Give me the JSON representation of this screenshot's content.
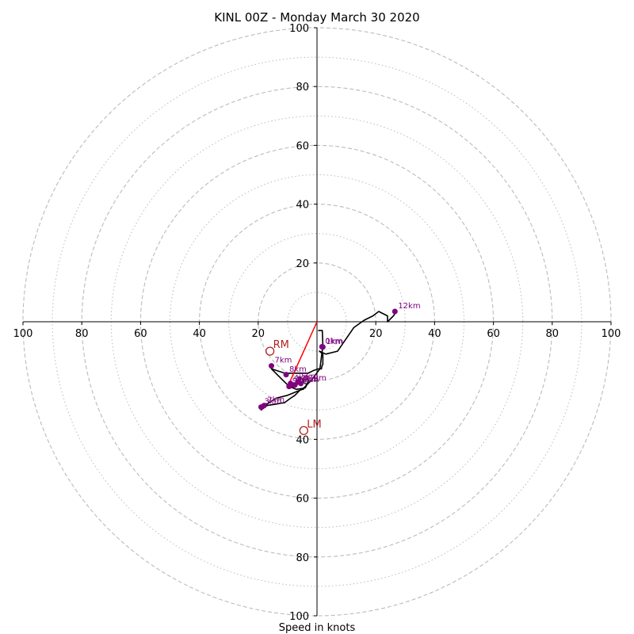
{
  "chart_data": {
    "type": "line",
    "title": "KINL 00Z - Monday March 30 2020",
    "xlabel": "Speed in knots",
    "axis_range": [
      -100,
      100
    ],
    "ring_major": [
      20,
      40,
      60,
      80,
      100
    ],
    "ring_minor": [
      10,
      30,
      50,
      70,
      90
    ],
    "tick_labels_x": [
      "100",
      "80",
      "60",
      "40",
      "20",
      "20",
      "40",
      "60",
      "80",
      "100"
    ],
    "tick_labels_y_top": [
      "20",
      "40",
      "60",
      "80",
      "100"
    ],
    "tick_labels_y_bottom": [
      "20",
      "40",
      "60",
      "80",
      "100"
    ],
    "hodograph": {
      "x": [
        0.4,
        1.8,
        2.0,
        1.0,
        -0.5,
        -2.0,
        -5.0,
        -10.0,
        -14.0,
        -17.0,
        -19.0,
        -17.0,
        -14.0,
        -11.0,
        -9.0,
        -7.5,
        -6.5,
        -5.5,
        -4.7,
        -3.9,
        -3.2,
        -4.0,
        -7.0,
        -9.5,
        -11.5,
        -15.5,
        -11.0,
        -6.0,
        -3.0,
        -1.0,
        0.5,
        1.5,
        1.7,
        2.0,
        2.0,
        0.8,
        3.0,
        7.0,
        12.5,
        16.0,
        19.0,
        21.0,
        24.0,
        24.0,
        26.0,
        27.0
      ],
      "y": [
        -3.0,
        -3.0,
        -8.0,
        -16.0,
        -18.0,
        -20.0,
        -23.0,
        -25.0,
        -26.0,
        -28.0,
        -30.0,
        -28.5,
        -28.0,
        -27.5,
        -26.0,
        -25.0,
        -24.0,
        -23.0,
        -23.0,
        -22.0,
        -21.0,
        -22.5,
        -23.0,
        -22.0,
        -20.0,
        -16.0,
        -17.5,
        -17.5,
        -17.5,
        -16.5,
        -16.0,
        -16.0,
        -15.0,
        -14.5,
        -11.0,
        -10.0,
        -11.0,
        -10.0,
        -2.0,
        0.5,
        2.0,
        3.5,
        2.0,
        0.0,
        2.0,
        3.5
      ]
    },
    "storm_motion_line": {
      "x": [
        0,
        -9.5
      ],
      "y": [
        0,
        -21
      ]
    },
    "height_markers": [
      {
        "label": "0km",
        "x": 1.7,
        "y": -8.5
      },
      {
        "label": "1km",
        "x": 2.0,
        "y": -8.6
      },
      {
        "label": "2km",
        "x": -18.0,
        "y": -28.5
      },
      {
        "label": "3km",
        "x": -19.0,
        "y": -29.0
      },
      {
        "label": "4km",
        "x": -9.0,
        "y": -21.0
      },
      {
        "label": "5km",
        "x": -6.5,
        "y": -20.5
      },
      {
        "label": "6km",
        "x": -7.5,
        "y": -21.5
      },
      {
        "label": "7km",
        "x": -15.5,
        "y": -15.0
      },
      {
        "label": "8km",
        "x": -10.5,
        "y": -18.0
      },
      {
        "label": "9km",
        "x": -9.5,
        "y": -22.0
      },
      {
        "label": "10km",
        "x": -8.0,
        "y": -21.5
      },
      {
        "label": "11km",
        "x": -5.5,
        "y": -21.0
      },
      {
        "label": "12km",
        "x": 26.5,
        "y": 3.5
      }
    ],
    "storm_motion_points": [
      {
        "label": "RM",
        "x": -16.0,
        "y": -10.0
      },
      {
        "label": "LM",
        "x": -4.5,
        "y": -37.0
      }
    ],
    "colors": {
      "hodograph": "#000000",
      "markers": "#800080",
      "storm_motion": "#b22222",
      "mean_wind_line": "#ff0000",
      "grid": "#bbbbbb"
    }
  }
}
